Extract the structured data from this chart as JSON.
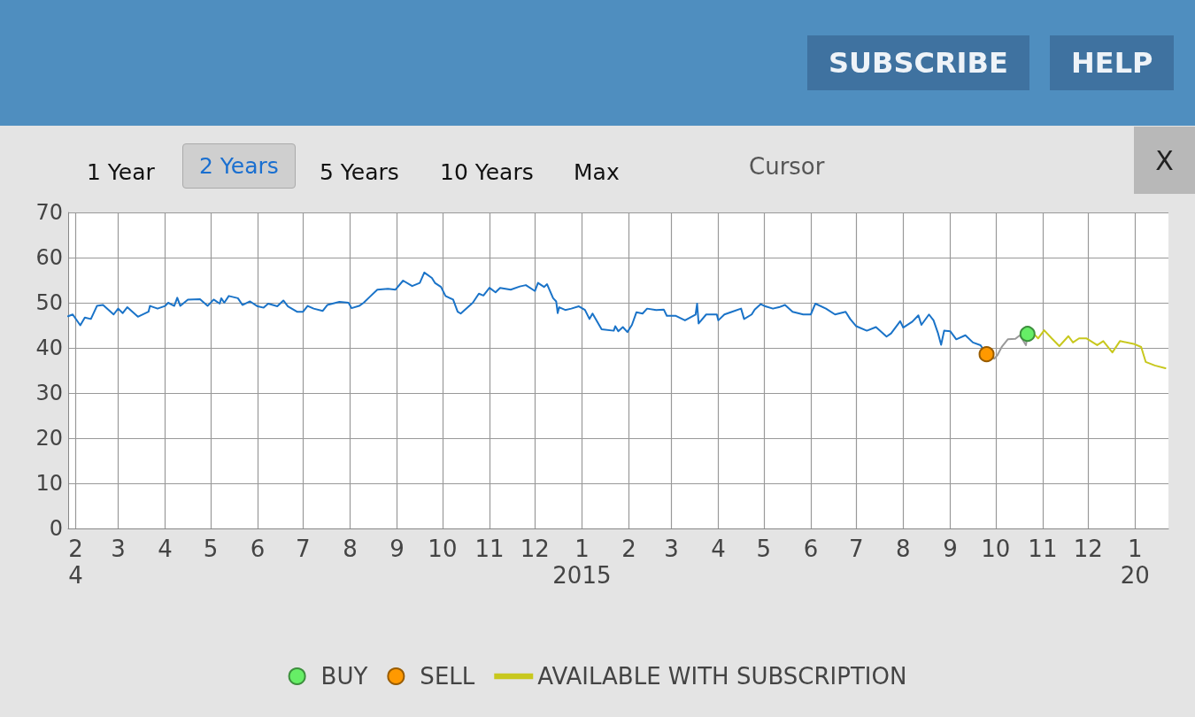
{
  "chart_data": {
    "type": "line",
    "annotations": [
      "1 Year",
      "2 Years",
      "5 Years",
      "10 Years",
      "Max",
      "Cursor",
      "X",
      "SUBSCRIBE",
      "HELP"
    ],
    "xlim": [
      "2014-01-27",
      "2016-01-23"
    ],
    "xticks": [
      {
        "value": "2014-02-01",
        "label": "2\n4"
      },
      {
        "value": "2014-03-01",
        "label": "3"
      },
      {
        "value": "2014-04-01",
        "label": "4"
      },
      {
        "value": "2014-05-01",
        "label": "5"
      },
      {
        "value": "2014-06-01",
        "label": "6"
      },
      {
        "value": "2014-07-01",
        "label": "7"
      },
      {
        "value": "2014-08-01",
        "label": "8"
      },
      {
        "value": "2014-09-01",
        "label": "9"
      },
      {
        "value": "2014-10-01",
        "label": "10"
      },
      {
        "value": "2014-11-01",
        "label": "11"
      },
      {
        "value": "2014-12-01",
        "label": "12"
      },
      {
        "value": "2015-01-01",
        "label": "1\n2015"
      },
      {
        "value": "2015-02-01",
        "label": "2"
      },
      {
        "value": "2015-03-01",
        "label": "3"
      },
      {
        "value": "2015-04-01",
        "label": "4"
      },
      {
        "value": "2015-05-01",
        "label": "5"
      },
      {
        "value": "2015-06-01",
        "label": "6"
      },
      {
        "value": "2015-07-01",
        "label": "7"
      },
      {
        "value": "2015-08-01",
        "label": "8"
      },
      {
        "value": "2015-09-01",
        "label": "9"
      },
      {
        "value": "2015-10-01",
        "label": "10"
      },
      {
        "value": "2015-11-01",
        "label": "11"
      },
      {
        "value": "2015-12-01",
        "label": "12"
      },
      {
        "value": "2016-01-01",
        "label": "1\n20"
      }
    ],
    "ylim": [
      0,
      70
    ],
    "yticks": [
      0,
      10,
      20,
      30,
      40,
      50,
      60,
      70
    ],
    "grid": true,
    "legend": "bottom",
    "marker": "none",
    "line_style": "solid",
    "series": [
      {
        "color": "#1a73c8",
        "x": [
          "2014-01-27",
          "2014-01-30",
          "2014-02-04",
          "2014-02-07",
          "2014-02-11",
          "2014-02-15",
          "2014-02-19",
          "2014-02-26",
          "2014-03-01",
          "2014-03-04",
          "2014-03-07",
          "2014-03-14",
          "2014-03-21",
          "2014-03-22",
          "2014-03-27",
          "2014-04-01",
          "2014-04-03",
          "2014-04-07",
          "2014-04-09",
          "2014-04-11",
          "2014-04-16",
          "2014-04-24",
          "2014-04-29",
          "2014-05-03",
          "2014-05-07",
          "2014-05-08",
          "2014-05-10",
          "2014-05-13",
          "2014-05-19",
          "2014-05-22",
          "2014-05-27",
          "2014-06-01",
          "2014-06-05",
          "2014-06-08",
          "2014-06-14",
          "2014-06-18",
          "2014-06-21",
          "2014-06-27",
          "2014-07-01",
          "2014-07-04",
          "2014-07-08",
          "2014-07-14",
          "2014-07-17",
          "2014-07-25",
          "2014-07-31",
          "2014-08-02",
          "2014-08-07",
          "2014-08-10",
          "2014-08-14",
          "2014-08-19",
          "2014-08-26",
          "2014-08-31",
          "2014-09-05",
          "2014-09-11",
          "2014-09-16",
          "2014-09-19",
          "2014-09-24",
          "2014-09-26",
          "2014-09-30",
          "2014-10-03",
          "2014-10-08",
          "2014-10-11",
          "2014-10-13",
          "2014-10-21",
          "2014-10-25",
          "2014-10-28",
          "2014-11-01",
          "2014-11-05",
          "2014-11-08",
          "2014-11-15",
          "2014-11-21",
          "2014-11-25",
          "2014-12-01",
          "2014-12-03",
          "2014-12-07",
          "2014-12-09",
          "2014-12-13",
          "2014-12-15",
          "2014-12-16",
          "2014-12-17",
          "2014-12-21",
          "2014-12-25",
          "2014-12-30",
          "2015-01-03",
          "2015-01-06",
          "2015-01-08",
          "2015-01-14",
          "2015-01-22",
          "2015-01-23",
          "2015-01-25",
          "2015-01-28",
          "2015-01-31",
          "2015-02-03",
          "2015-02-06",
          "2015-02-10",
          "2015-02-13",
          "2015-02-19",
          "2015-02-24",
          "2015-02-26",
          "2015-03-04",
          "2015-03-10",
          "2015-03-17",
          "2015-03-18",
          "2015-03-19",
          "2015-03-24",
          "2015-03-31",
          "2015-04-01",
          "2015-04-05",
          "2015-04-10",
          "2015-04-16",
          "2015-04-18",
          "2015-04-23",
          "2015-04-25",
          "2015-04-29",
          "2015-05-02",
          "2015-05-07",
          "2015-05-11",
          "2015-05-15",
          "2015-05-20",
          "2015-05-27",
          "2015-06-01",
          "2015-06-04",
          "2015-06-11",
          "2015-06-17",
          "2015-06-24",
          "2015-06-27",
          "2015-07-01",
          "2015-07-08",
          "2015-07-14",
          "2015-07-21",
          "2015-07-24",
          "2015-07-30",
          "2015-08-01",
          "2015-08-07",
          "2015-08-11",
          "2015-08-13",
          "2015-08-18",
          "2015-08-21",
          "2015-08-24",
          "2015-08-26",
          "2015-08-28",
          "2015-09-01",
          "2015-09-05",
          "2015-09-11",
          "2015-09-16",
          "2015-09-21",
          "2015-09-25"
        ],
        "values": [
          47,
          47.4,
          45.0,
          46.7,
          46.4,
          49.3,
          49.5,
          47.4,
          48.7,
          47.7,
          49.0,
          46.9,
          48.0,
          49.3,
          48.7,
          49.3,
          50.0,
          49.3,
          51.1,
          49.3,
          50.7,
          50.8,
          49.3,
          50.7,
          49.8,
          51.0,
          50.0,
          51.5,
          51.0,
          49.5,
          50.3,
          49.2,
          48.9,
          49.8,
          49.2,
          50.5,
          49.2,
          48.0,
          48.0,
          49.3,
          48.7,
          48.2,
          49.5,
          50.2,
          50.0,
          48.8,
          49.3,
          50.0,
          51.3,
          52.9,
          53.1,
          52.9,
          54.9,
          53.7,
          54.4,
          56.7,
          55.5,
          54.4,
          53.5,
          51.5,
          50.7,
          48.0,
          47.6,
          50.0,
          52.0,
          51.6,
          53.3,
          52.3,
          53.3,
          52.9,
          53.6,
          53.9,
          52.6,
          54.4,
          53.5,
          54.1,
          51.0,
          50.3,
          47.7,
          49.0,
          48.4,
          48.7,
          49.2,
          48.4,
          46.4,
          47.6,
          44.1,
          43.8,
          44.8,
          43.7,
          44.6,
          43.5,
          45.1,
          47.9,
          47.6,
          48.7,
          48.4,
          48.5,
          47.1,
          47.1,
          46.1,
          47.4,
          49.8,
          45.4,
          47.4,
          47.4,
          46.1,
          47.4,
          48.0,
          48.7,
          46.4,
          47.4,
          48.5,
          49.7,
          49.2,
          48.7,
          49.0,
          49.5,
          48.0,
          47.4,
          47.4,
          49.8,
          48.7,
          47.4,
          48.0,
          46.4,
          44.8,
          43.8,
          44.6,
          42.5,
          43.2,
          45.9,
          44.5,
          45.8,
          47.2,
          45.1,
          47.4,
          46.1,
          43.2,
          40.7,
          43.8,
          43.7,
          41.9,
          42.8,
          41.2,
          40.6,
          38.6
        ]
      },
      {
        "color": "#999999",
        "x": [
          "2015-09-25",
          "2015-09-30",
          "2015-10-02",
          "2015-10-05",
          "2015-10-09",
          "2015-10-14",
          "2015-10-17",
          "2015-10-21",
          "2015-10-22"
        ],
        "values": [
          38.6,
          37.6,
          38.3,
          40.2,
          41.9,
          42.0,
          42.8,
          40.6,
          43.1
        ]
      },
      {
        "name": "AVAILABLE WITH SUBSCRIPTION",
        "color": "#c8c81e",
        "x": [
          "2015-10-22",
          "2015-10-25",
          "2015-10-29",
          "2015-11-02",
          "2015-11-07",
          "2015-11-12",
          "2015-11-18",
          "2015-11-21",
          "2015-11-25",
          "2015-11-30",
          "2015-12-07",
          "2015-12-11",
          "2015-12-17",
          "2015-12-22",
          "2015-12-31",
          "2016-01-05",
          "2016-01-08",
          "2016-01-14",
          "2016-01-21"
        ],
        "values": [
          43.1,
          43.5,
          42.1,
          43.9,
          42.1,
          40.4,
          42.6,
          41.2,
          42.1,
          42.1,
          40.6,
          41.5,
          39.0,
          41.5,
          40.9,
          40.2,
          36.9,
          36.1,
          35.5
        ]
      },
      {
        "name": "BUY",
        "type": "scatter",
        "marker": "circle",
        "color": "#66ee66",
        "x": [
          "2015-10-22"
        ],
        "values": [
          43.1
        ]
      },
      {
        "name": "SELL",
        "type": "scatter",
        "marker": "circle",
        "color": "#ff9900",
        "x": [
          "2015-09-25"
        ],
        "values": [
          38.6
        ]
      }
    ]
  }
}
